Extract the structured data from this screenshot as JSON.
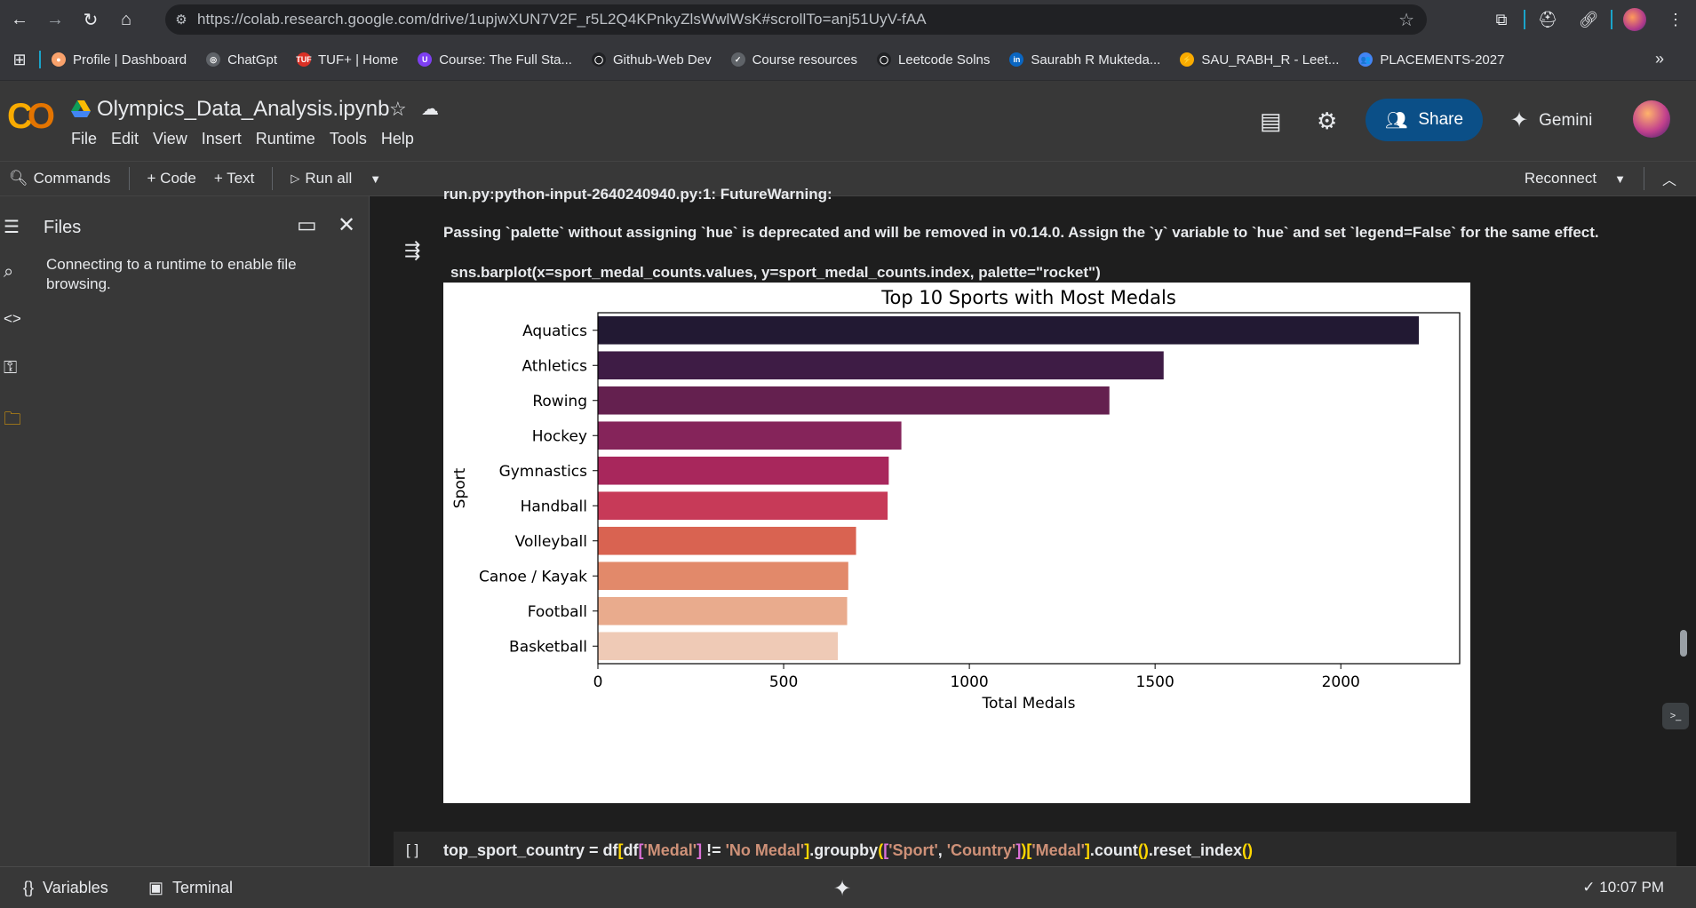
{
  "browser": {
    "url": "https://colab.research.google.com/drive/1upjwXUN7V2F_r5L2Q4KPnkyZlsWwlWsK#scrollTo=anj51UyV-fAA"
  },
  "bookmarks": [
    {
      "label": "Profile | Dashboard",
      "color": "#f9a26c",
      "glyph": "●"
    },
    {
      "label": "ChatGpt",
      "color": "#5f6368",
      "glyph": "◎"
    },
    {
      "label": "TUF+ | Home",
      "color": "#d93025",
      "glyph": "TUF"
    },
    {
      "label": "Course: The Full Sta...",
      "color": "#7e3ff2",
      "glyph": "U"
    },
    {
      "label": "Github-Web Dev",
      "color": "#202124",
      "glyph": "◯"
    },
    {
      "label": "Course resources",
      "color": "#5f6368",
      "glyph": "✓"
    },
    {
      "label": "Leetcode Solns",
      "color": "#202124",
      "glyph": "◯"
    },
    {
      "label": "Saurabh R Mukteda...",
      "color": "#0a66c2",
      "glyph": "in"
    },
    {
      "label": "SAU_RABH_R - Leet...",
      "color": "#f9ab00",
      "glyph": "⚡"
    },
    {
      "label": "PLACEMENTS-2027",
      "color": "#4285f4",
      "glyph": "👥"
    }
  ],
  "header": {
    "title": "Olympics_Data_Analysis.ipynb",
    "menu": [
      "File",
      "Edit",
      "View",
      "Insert",
      "Runtime",
      "Tools",
      "Help"
    ],
    "share": "Share",
    "gemini": "Gemini"
  },
  "toolbar": {
    "commands": "Commands",
    "code": "+ Code",
    "text": "+ Text",
    "run_all": "Run all",
    "reconnect": "Reconnect"
  },
  "files": {
    "title": "Files",
    "message": "Connecting to a runtime to enable file browsing."
  },
  "output": {
    "cut_line": "run.py:python-input-2640240940.py:1: FutureWarning:",
    "warning": "Passing `palette` without assigning `hue` is deprecated and will be removed in v0.14.0. Assign the `y` variable to `hue` and set `legend=False` for the same effect.",
    "code_line": "sns.barplot(x=sport_medal_counts.values, y=sport_medal_counts.index, palette=\"rocket\")"
  },
  "chart_data": {
    "type": "bar",
    "orientation": "horizontal",
    "title": "Top 10 Sports with Most Medals",
    "xlabel": "Total Medals",
    "ylabel": "Sport",
    "categories": [
      "Aquatics",
      "Athletics",
      "Rowing",
      "Hockey",
      "Gymnastics",
      "Handball",
      "Volleyball",
      "Canoe / Kayak",
      "Football",
      "Basketball"
    ],
    "values": [
      2210,
      1523,
      1377,
      817,
      783,
      780,
      695,
      674,
      671,
      646
    ],
    "colors": [
      "#221933",
      "#3e1c45",
      "#64204f",
      "#85245a",
      "#a8275c",
      "#c73a58",
      "#d96351",
      "#e2896a",
      "#e9ab8d",
      "#efcab6"
    ],
    "xlim": [
      0,
      2320
    ],
    "xticks": [
      0,
      500,
      1000,
      1500,
      2000
    ]
  },
  "next_cell": {
    "brackets": "[ ]",
    "code_parts": [
      {
        "t": "top_sport_country = df",
        "c": ""
      },
      {
        "t": "[",
        "c": "br1"
      },
      {
        "t": "df",
        "c": ""
      },
      {
        "t": "[",
        "c": "br2"
      },
      {
        "t": "'Medal'",
        "c": "str"
      },
      {
        "t": "]",
        "c": "br2"
      },
      {
        "t": " != ",
        "c": ""
      },
      {
        "t": "'No Medal'",
        "c": "str"
      },
      {
        "t": "]",
        "c": "br1"
      },
      {
        "t": ".groupby",
        "c": ""
      },
      {
        "t": "(",
        "c": "br1"
      },
      {
        "t": "[",
        "c": "br2"
      },
      {
        "t": "'Sport'",
        "c": "str"
      },
      {
        "t": ", ",
        "c": ""
      },
      {
        "t": "'Country'",
        "c": "str"
      },
      {
        "t": "]",
        "c": "br2"
      },
      {
        "t": ")",
        "c": "br1"
      },
      {
        "t": "[",
        "c": "br1"
      },
      {
        "t": "'Medal'",
        "c": "str"
      },
      {
        "t": "]",
        "c": "br1"
      },
      {
        "t": ".count",
        "c": ""
      },
      {
        "t": "()",
        "c": "br1"
      },
      {
        "t": ".reset_index",
        "c": ""
      },
      {
        "t": "()",
        "c": "br1"
      }
    ]
  },
  "statusbar": {
    "variables": "Variables",
    "terminal": "Terminal",
    "time": "10:07 PM"
  }
}
